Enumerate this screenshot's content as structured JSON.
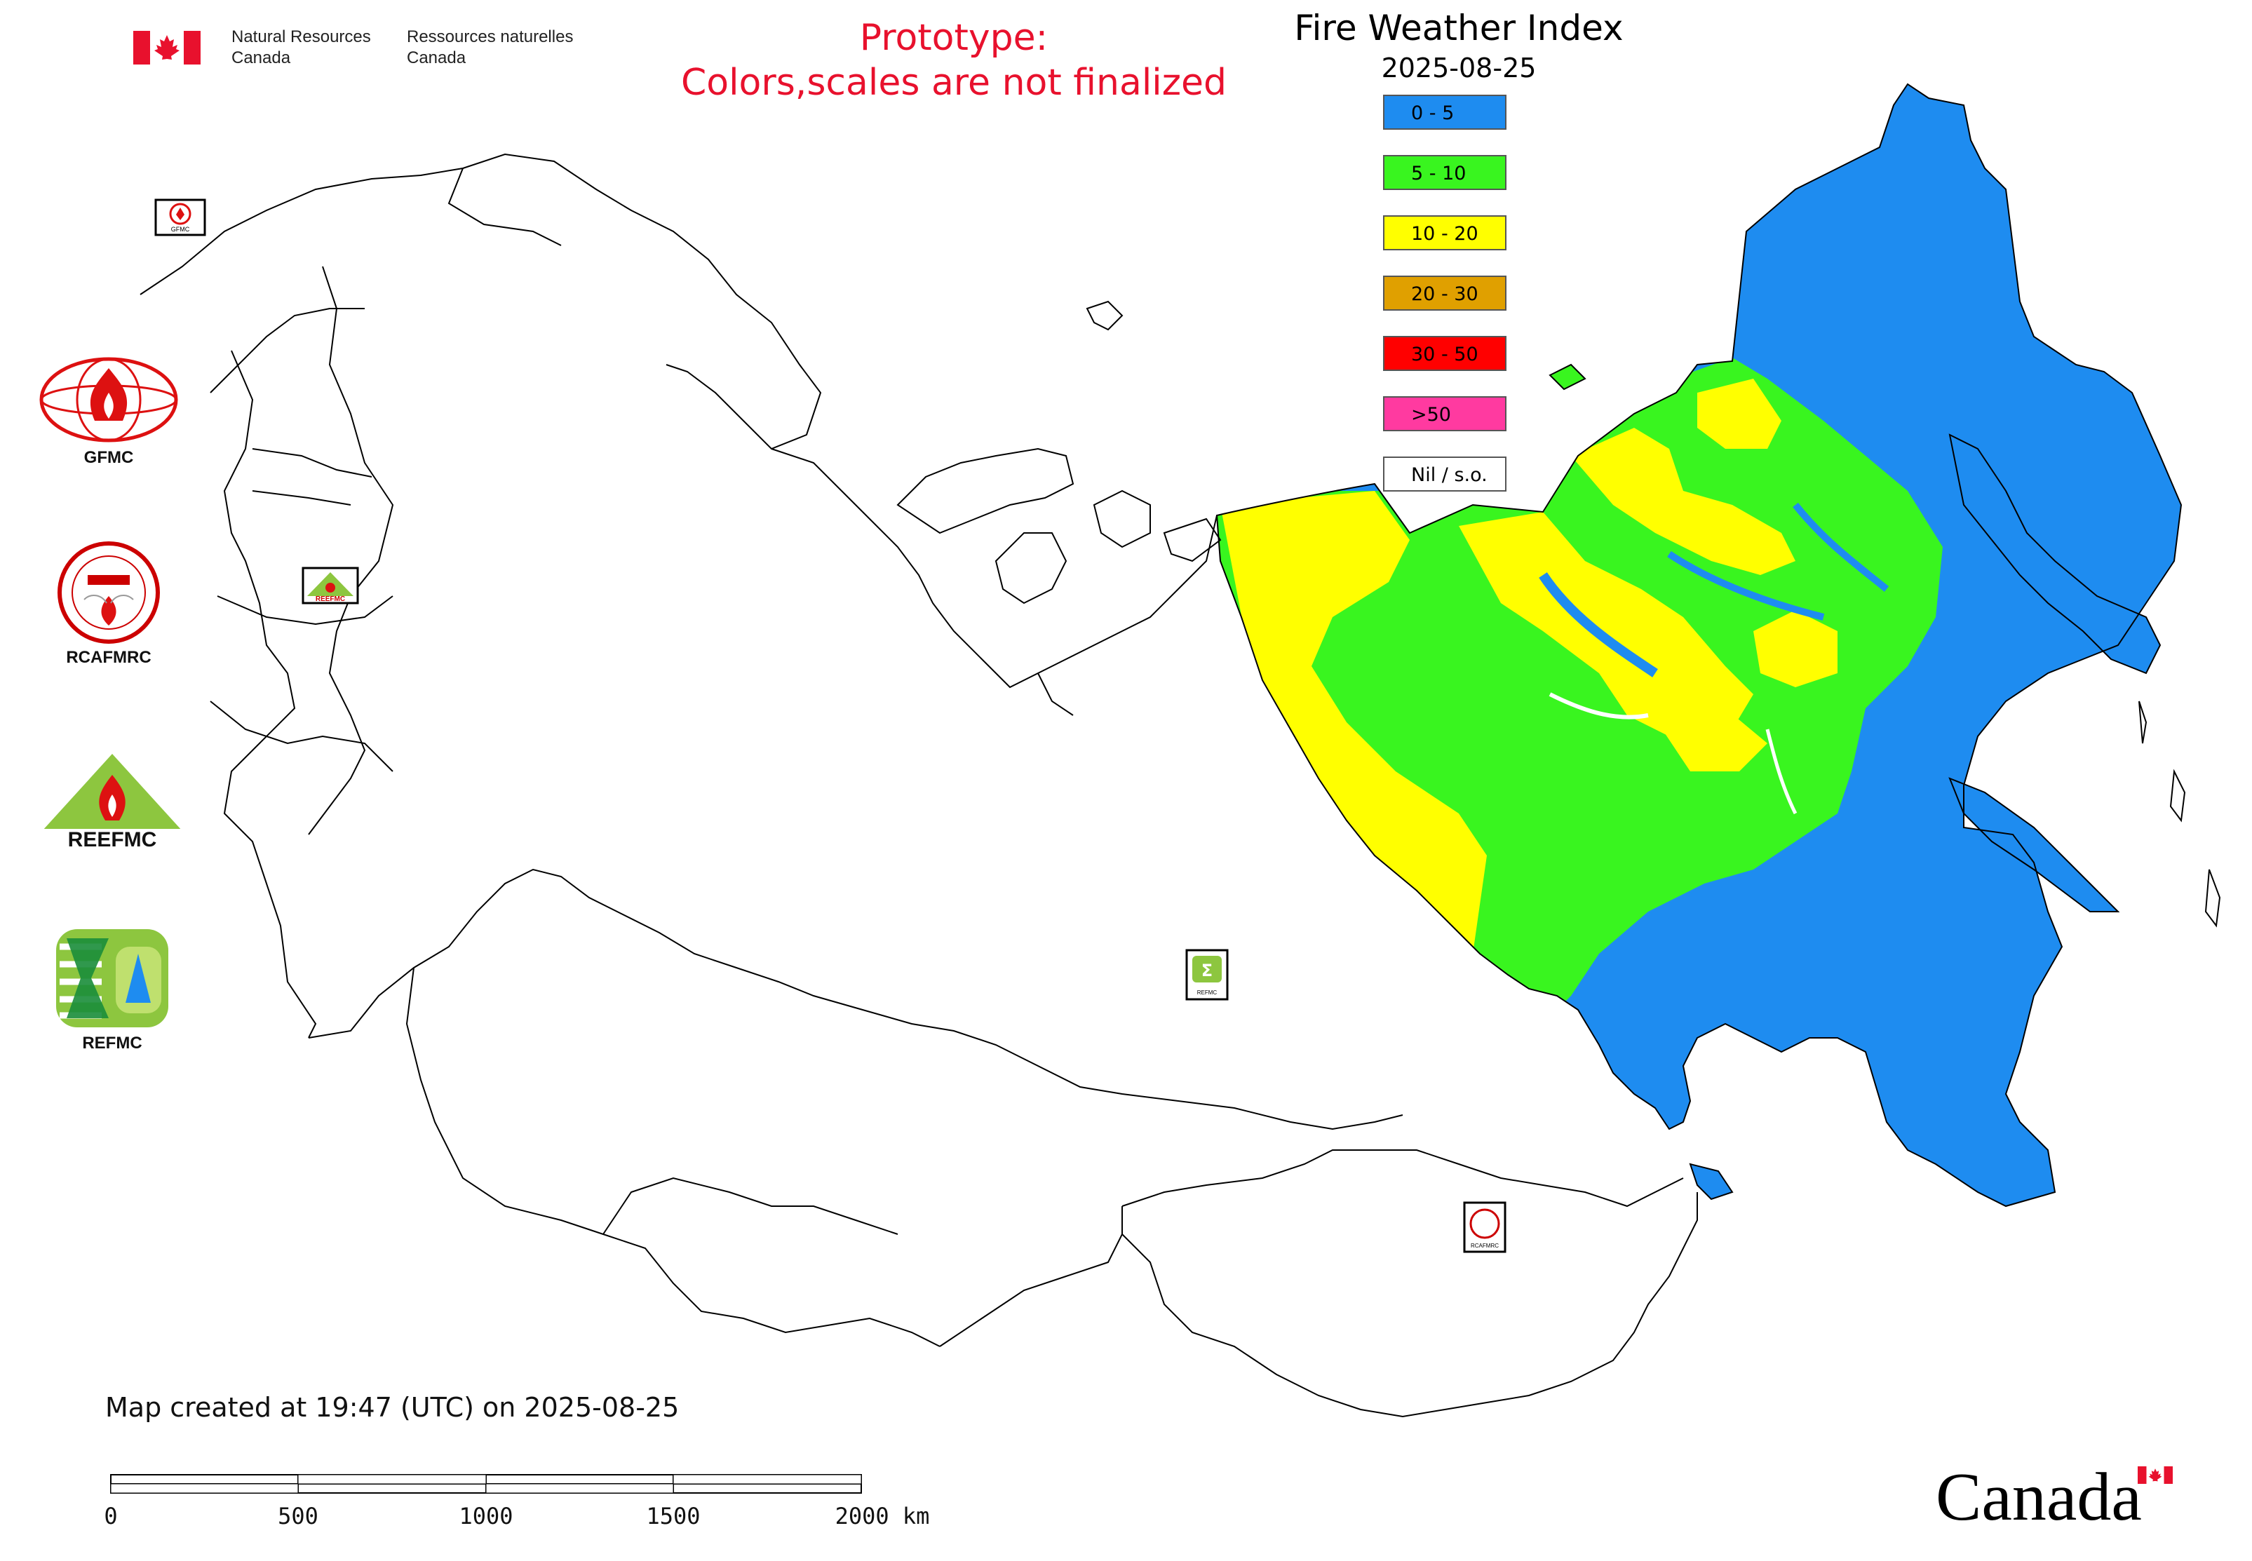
{
  "header": {
    "agency_en_line1": "Natural Resources",
    "agency_en_line2": "Canada",
    "agency_fr_line1": "Ressources naturelles",
    "agency_fr_line2": "Canada",
    "prototype_line1": "Prototype:",
    "prototype_line2": "Colors,scales are not finalized",
    "title": "Fire Weather Index",
    "date": "2025-08-25"
  },
  "legend": {
    "items": [
      {
        "label": "0 - 5",
        "color": "#1e8cf0"
      },
      {
        "label": "5 - 10",
        "color": "#39f51f"
      },
      {
        "label": "10 - 20",
        "color": "#ffff00"
      },
      {
        "label": "20 - 30",
        "color": "#e0a000"
      },
      {
        "label": "30 - 50",
        "color": "#ff0000"
      },
      {
        "label": ">50",
        "color": "#ff3aa0"
      },
      {
        "label": "Nil / s.o.",
        "color": "#ffffff"
      }
    ]
  },
  "side_logos": [
    {
      "name": "GFMC",
      "icon": "gfmc-globe-flame-icon"
    },
    {
      "name": "RCAFMRC",
      "icon": "rcafmrc-seal-icon"
    },
    {
      "name": "",
      "icon": "reefmc-triangle-icon",
      "wordmark": "REEFMC"
    },
    {
      "name": "REFMC",
      "icon": "refmc-sigma-icon"
    }
  ],
  "footer": {
    "created_text": "Map created at 19:47 (UTC) on 2025-08-25",
    "scale_ticks": [
      "0",
      "500",
      "1000",
      "1500",
      "2000 km"
    ],
    "wordmark": "Canada"
  },
  "colors": {
    "accent_red": "#e8112d",
    "boundary": "#000000"
  }
}
